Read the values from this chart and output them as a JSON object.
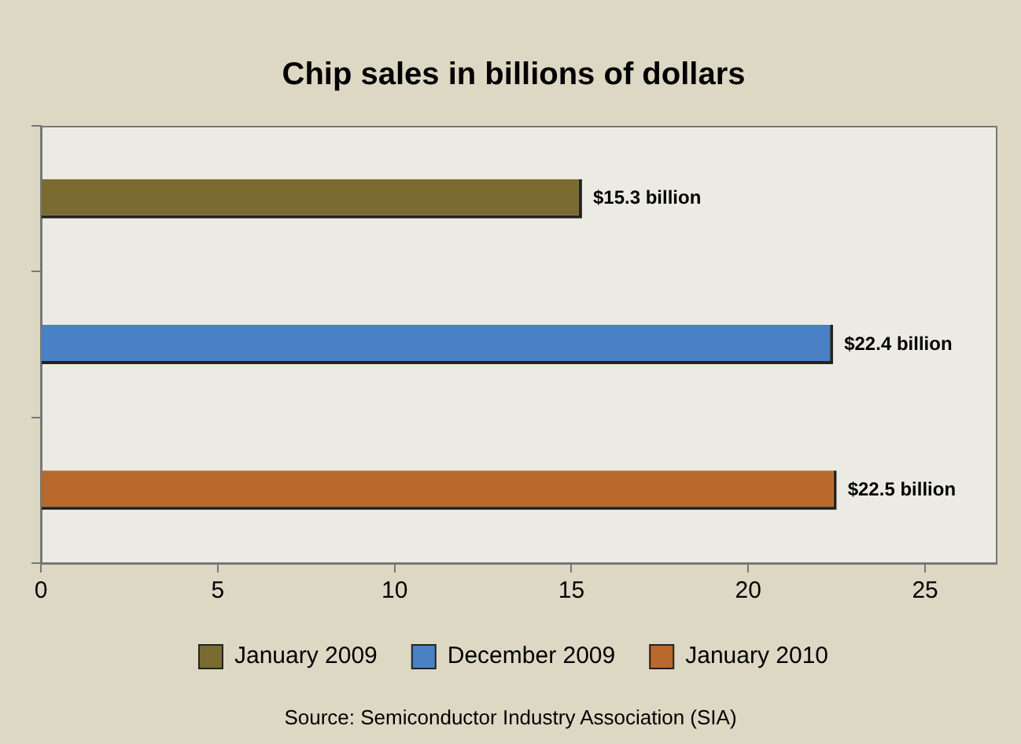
{
  "chart_data": {
    "type": "bar",
    "orientation": "horizontal",
    "title": "Chip sales in billions of dollars",
    "categories": [
      null,
      null,
      null
    ],
    "series": [
      {
        "name": "January 2009",
        "color": "#7a6c30",
        "values": [
          15.3,
          null,
          null
        ],
        "value_labels": [
          "$15.3 billion",
          null,
          null
        ]
      },
      {
        "name": "December 2009",
        "color": "#4a81c4",
        "values": [
          null,
          22.4,
          null
        ],
        "value_labels": [
          null,
          "$22.4 billion",
          null
        ]
      },
      {
        "name": "January 2010",
        "color": "#b8692b",
        "values": [
          null,
          null,
          22.5
        ],
        "value_labels": [
          null,
          null,
          "$22.5 billion"
        ]
      }
    ],
    "xlim": [
      0,
      27
    ],
    "xticks": [
      0,
      5,
      10,
      15,
      20,
      25
    ],
    "grid": false,
    "legend": "bottom",
    "annotations": [
      "Source: Semiconductor Industry Association (SIA)"
    ]
  }
}
